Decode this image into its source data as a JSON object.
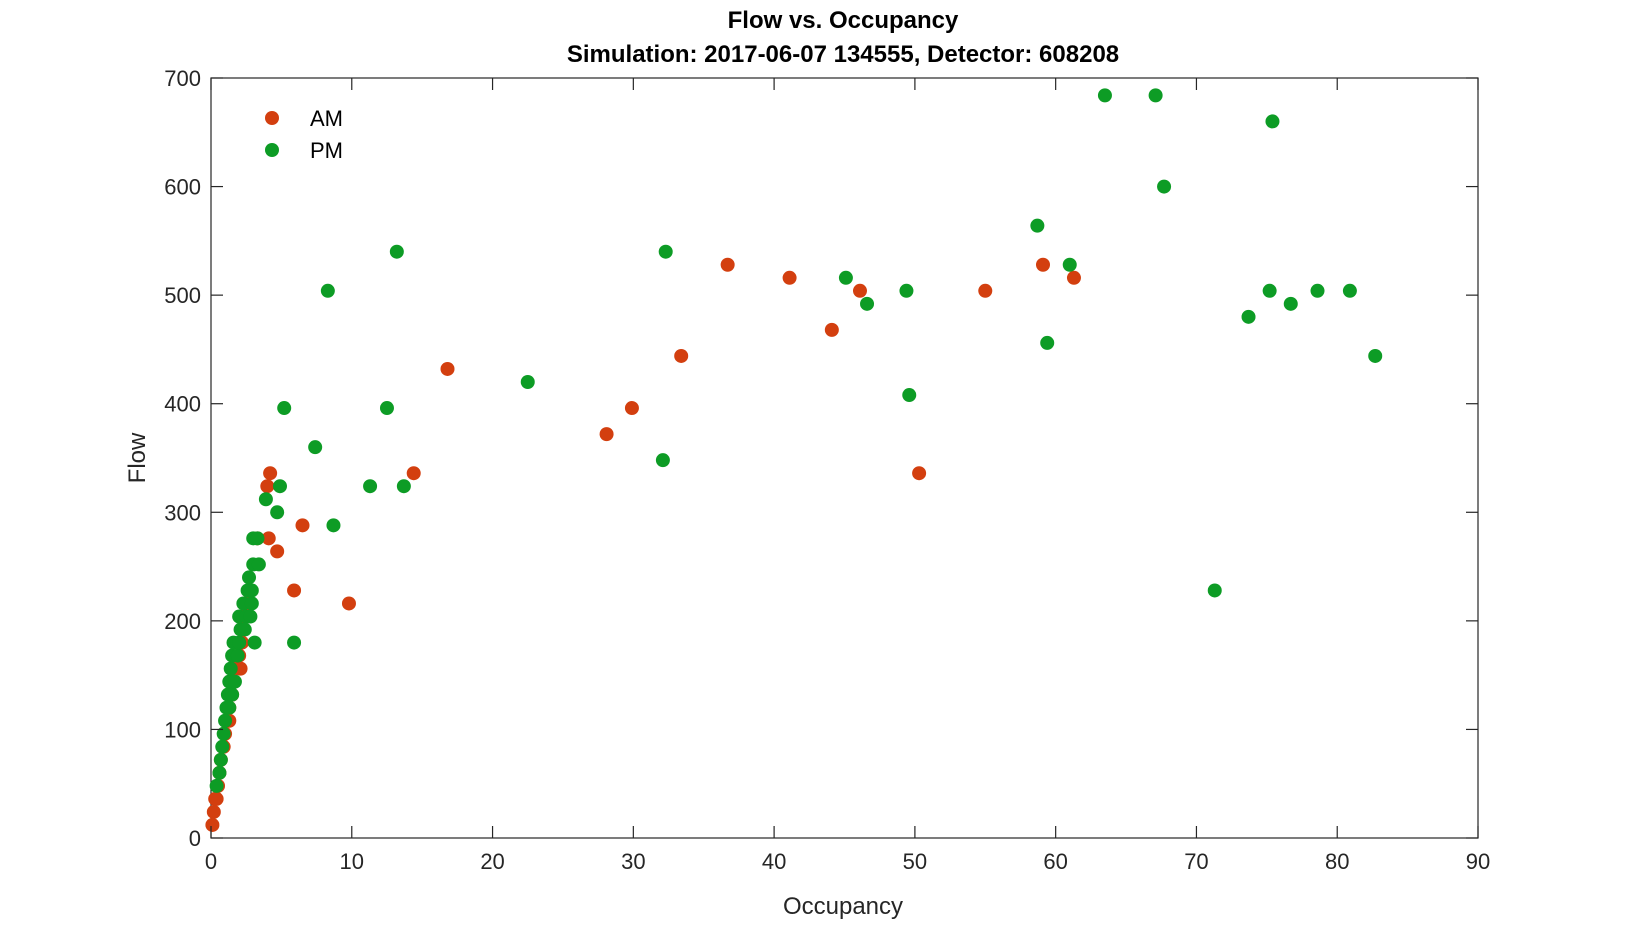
{
  "chart_data": {
    "type": "scatter",
    "title": "Flow vs. Occupancy",
    "subtitle": "Simulation:  2017-06-07 134555,  Detector:  608208",
    "xlabel": "Occupancy",
    "ylabel": "Flow",
    "xlim": [
      0,
      90
    ],
    "ylim": [
      0,
      700
    ],
    "xticks": [
      "0",
      "10",
      "20",
      "30",
      "40",
      "50",
      "60",
      "70",
      "80",
      "90"
    ],
    "yticks": [
      "0",
      "100",
      "200",
      "300",
      "400",
      "500",
      "600",
      "700"
    ],
    "grid": false,
    "legend_position": "top-left",
    "series": [
      {
        "name": "AM",
        "color": "#d33f0f",
        "points": [
          [
            0.1,
            12
          ],
          [
            0.2,
            24
          ],
          [
            0.3,
            36
          ],
          [
            0.4,
            36
          ],
          [
            0.5,
            48
          ],
          [
            0.6,
            60
          ],
          [
            0.7,
            72
          ],
          [
            0.9,
            84
          ],
          [
            1.0,
            96
          ],
          [
            1.1,
            108
          ],
          [
            1.3,
            120
          ],
          [
            1.3,
            108
          ],
          [
            1.5,
            132
          ],
          [
            1.6,
            144
          ],
          [
            1.7,
            156
          ],
          [
            2.0,
            168
          ],
          [
            2.1,
            156
          ],
          [
            2.2,
            180
          ],
          [
            2.3,
            192
          ],
          [
            2.4,
            204
          ],
          [
            2.5,
            216
          ],
          [
            2.7,
            228
          ],
          [
            2.8,
            216
          ],
          [
            3.3,
            276
          ],
          [
            4.0,
            324
          ],
          [
            4.2,
            336
          ],
          [
            4.1,
            276
          ],
          [
            4.7,
            264
          ],
          [
            5.9,
            228
          ],
          [
            6.5,
            288
          ],
          [
            9.8,
            216
          ],
          [
            14.4,
            336
          ],
          [
            16.8,
            432
          ],
          [
            28.1,
            372
          ],
          [
            29.9,
            396
          ],
          [
            33.4,
            444
          ],
          [
            36.7,
            528
          ],
          [
            41.1,
            516
          ],
          [
            44.1,
            468
          ],
          [
            46.1,
            504
          ],
          [
            50.3,
            336
          ],
          [
            55.0,
            504
          ],
          [
            59.1,
            528
          ],
          [
            61.3,
            516
          ]
        ]
      },
      {
        "name": "PM",
        "color": "#0d9c25",
        "points": [
          [
            0.4,
            48
          ],
          [
            0.6,
            60
          ],
          [
            0.7,
            72
          ],
          [
            0.8,
            84
          ],
          [
            0.9,
            96
          ],
          [
            1.0,
            108
          ],
          [
            1.1,
            120
          ],
          [
            1.2,
            132
          ],
          [
            1.3,
            144
          ],
          [
            1.4,
            156
          ],
          [
            1.5,
            168
          ],
          [
            1.6,
            180
          ],
          [
            1.3,
            120
          ],
          [
            1.5,
            132
          ],
          [
            1.7,
            144
          ],
          [
            1.9,
            168
          ],
          [
            2.0,
            180
          ],
          [
            2.1,
            192
          ],
          [
            2.0,
            204
          ],
          [
            2.3,
            216
          ],
          [
            2.5,
            204
          ],
          [
            2.6,
            228
          ],
          [
            2.7,
            240
          ],
          [
            2.9,
            216
          ],
          [
            3.0,
            252
          ],
          [
            3.0,
            276
          ],
          [
            3.3,
            276
          ],
          [
            3.4,
            252
          ],
          [
            3.1,
            180
          ],
          [
            2.8,
            204
          ],
          [
            2.9,
            228
          ],
          [
            2.4,
            192
          ],
          [
            3.9,
            312
          ],
          [
            4.7,
            300
          ],
          [
            4.9,
            324
          ],
          [
            5.2,
            396
          ],
          [
            5.9,
            180
          ],
          [
            7.4,
            360
          ],
          [
            8.3,
            504
          ],
          [
            8.7,
            288
          ],
          [
            11.3,
            324
          ],
          [
            12.5,
            396
          ],
          [
            13.2,
            540
          ],
          [
            13.7,
            324
          ],
          [
            22.5,
            420
          ],
          [
            32.1,
            348
          ],
          [
            32.3,
            540
          ],
          [
            45.1,
            516
          ],
          [
            46.6,
            492
          ],
          [
            49.4,
            504
          ],
          [
            49.6,
            408
          ],
          [
            58.7,
            564
          ],
          [
            59.4,
            456
          ],
          [
            61.0,
            528
          ],
          [
            63.5,
            684
          ],
          [
            67.1,
            684
          ],
          [
            67.7,
            600
          ],
          [
            71.3,
            228
          ],
          [
            73.7,
            480
          ],
          [
            75.2,
            504
          ],
          [
            75.4,
            660
          ],
          [
            76.7,
            492
          ],
          [
            78.6,
            504
          ],
          [
            80.9,
            504
          ],
          [
            82.7,
            444
          ]
        ]
      }
    ]
  }
}
